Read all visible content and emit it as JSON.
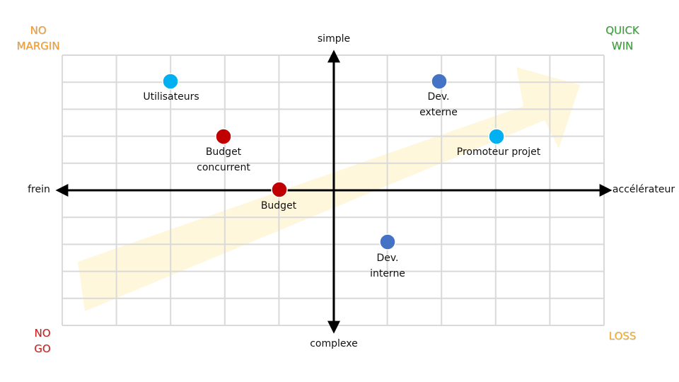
{
  "corners": {
    "top_left": {
      "text": "NO\nMARGIN",
      "color": "#f0a030"
    },
    "top_right": {
      "text": "QUICK\nWIN",
      "color": "#3aa03a"
    },
    "bottom_left": {
      "text": "NO\nGO",
      "color": "#d02020"
    },
    "bottom_right": {
      "text": "LOSS",
      "color": "#f0b030"
    }
  },
  "axes": {
    "top": "simple",
    "bottom": "complexe",
    "left": "frein",
    "right": "accélérateur"
  },
  "points": [
    {
      "label": "Utilisateurs",
      "color": "#00b0f0"
    },
    {
      "label": "Dev.\nexterne",
      "color": "#4472c4"
    },
    {
      "label": "Budget\nconcurrent",
      "color": "#c00000"
    },
    {
      "label": "Promoteur projet",
      "color": "#00b0f0"
    },
    {
      "label": "Budget",
      "color": "#c00000"
    },
    {
      "label": "Dev.\ninterne",
      "color": "#4472c4"
    }
  ],
  "colors": {
    "grid": "#d9d9d9",
    "axis": "#000000",
    "arrow_bg": "#fff6d6"
  }
}
